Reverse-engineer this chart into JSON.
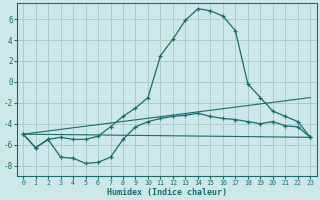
{
  "xlabel": "Humidex (Indice chaleur)",
  "background_color": "#cce8e8",
  "grid_color": "#aacccc",
  "line_color": "#1a6b6b",
  "xlim": [
    -0.5,
    23.5
  ],
  "ylim": [
    -9,
    7.5
  ],
  "xticks": [
    0,
    1,
    2,
    3,
    4,
    5,
    6,
    7,
    8,
    9,
    10,
    11,
    12,
    13,
    14,
    15,
    16,
    17,
    18,
    19,
    20,
    21,
    22,
    23
  ],
  "yticks": [
    -8,
    -6,
    -4,
    -2,
    0,
    2,
    4,
    6
  ],
  "series1_x": [
    0,
    1,
    2,
    3,
    4,
    5,
    6,
    7,
    8,
    9,
    10,
    11,
    12,
    13,
    14,
    15,
    16,
    17,
    18,
    19,
    20,
    21,
    22,
    23
  ],
  "series1_y": [
    -5.0,
    -6.3,
    -5.5,
    -5.3,
    -5.5,
    -5.5,
    -5.2,
    -4.3,
    -3.3,
    -2.5,
    -1.5,
    2.5,
    4.1,
    5.9,
    7.0,
    6.8,
    6.3,
    4.9,
    -0.2,
    -1.5,
    -2.8,
    -3.3,
    -3.8,
    -5.3
  ],
  "series2_x": [
    0,
    1,
    2,
    3,
    4,
    5,
    6,
    7,
    8,
    9,
    10,
    11,
    12,
    13,
    14,
    15,
    16,
    17,
    18,
    19,
    20,
    21,
    22,
    23
  ],
  "series2_y": [
    -5.0,
    -6.3,
    -5.5,
    -7.2,
    -7.3,
    -7.8,
    -7.7,
    -7.2,
    -5.5,
    -4.3,
    -3.8,
    -3.5,
    -3.3,
    -3.2,
    -3.0,
    -3.3,
    -3.5,
    -3.6,
    -3.8,
    -4.0,
    -3.8,
    -4.2,
    -4.3,
    -5.3
  ],
  "line3_x": [
    0,
    23
  ],
  "line3_y": [
    -5.0,
    -1.5
  ],
  "line4_x": [
    0,
    23
  ],
  "line4_y": [
    -5.0,
    -5.3
  ]
}
